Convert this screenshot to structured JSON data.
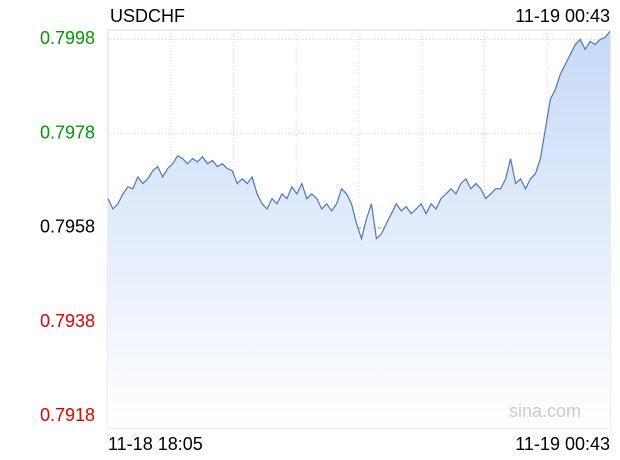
{
  "chart_data": {
    "type": "line",
    "title": "USDCHF",
    "time": "11-19 00:43",
    "x_labels": [
      "11-18 18:05",
      "11-19 00:43"
    ],
    "values": [
      0.79642,
      0.7962,
      0.79631,
      0.79652,
      0.79667,
      0.79663,
      0.79688,
      0.79674,
      0.79684,
      0.79701,
      0.7971,
      0.79688,
      0.79706,
      0.79716,
      0.79733,
      0.79727,
      0.79716,
      0.79727,
      0.7972,
      0.79731,
      0.79716,
      0.79723,
      0.7971,
      0.79716,
      0.79706,
      0.79701,
      0.79674,
      0.79684,
      0.79674,
      0.79688,
      0.79652,
      0.79631,
      0.7962,
      0.79642,
      0.79631,
      0.79652,
      0.79642,
      0.79667,
      0.79652,
      0.79674,
      0.79642,
      0.79652,
      0.79642,
      0.7962,
      0.79631,
      0.79616,
      0.79631,
      0.79663,
      0.79652,
      0.79631,
      0.79589,
      0.79557,
      0.79599,
      0.79631,
      0.79557,
      0.79567,
      0.79589,
      0.7961,
      0.79631,
      0.79616,
      0.79625,
      0.7961,
      0.7962,
      0.79631,
      0.7961,
      0.79631,
      0.7962,
      0.79642,
      0.79652,
      0.79663,
      0.79652,
      0.79674,
      0.79684,
      0.79663,
      0.79674,
      0.79663,
      0.79642,
      0.79652,
      0.79663,
      0.79663,
      0.79684,
      0.79727,
      0.79674,
      0.79684,
      0.79663,
      0.79684,
      0.79695,
      0.79727,
      0.7979,
      0.79853,
      0.79874,
      0.79906,
      0.79927,
      0.79948,
      0.79969,
      0.7998,
      0.79959,
      0.79976,
      0.79969,
      0.7998,
      0.79984,
      0.79997
    ],
    "color": "#4a78c2",
    "ylim": [
      0.79155,
      0.8
    ],
    "yticks": [
      0.7998,
      0.7978,
      0.7958,
      0.7938,
      0.7918
    ],
    "reference": 0.7958,
    "up_color": "#009900",
    "down_color": "#e60000",
    "flat_color": "#000000",
    "vertical_grid_lines": 8,
    "grid": true,
    "watermark": "sina.com"
  }
}
